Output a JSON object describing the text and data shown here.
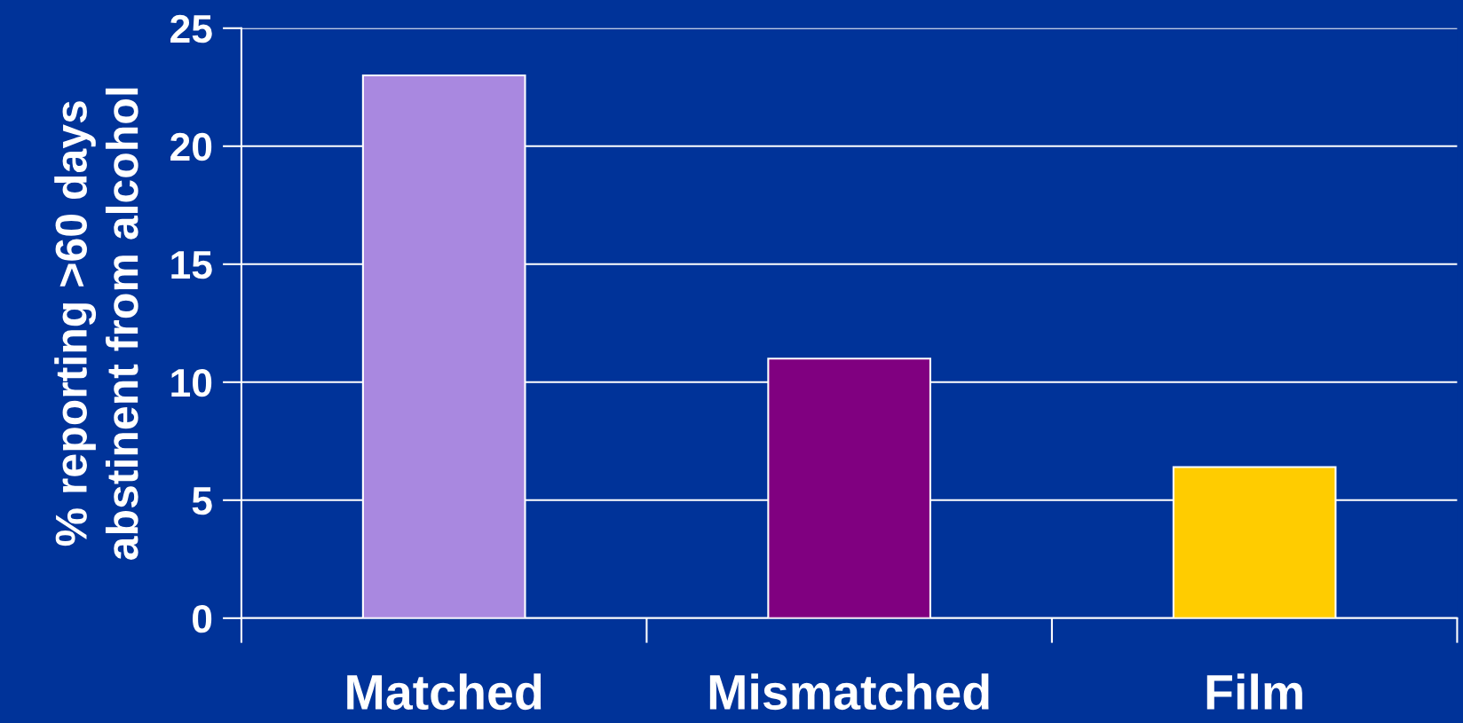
{
  "chart_data": {
    "type": "bar",
    "ylabel": "% reporting >60 days\nabstinent from alcohol",
    "categories": [
      "Matched",
      "Mismatched",
      "Film"
    ],
    "values": [
      23,
      11,
      6.4
    ],
    "colors": [
      "#a988e0",
      "#800080",
      "#ffcc00"
    ],
    "ylim": [
      0,
      25
    ],
    "yticks": [
      0,
      5,
      10,
      15,
      20,
      25
    ],
    "grid": "y",
    "legend": false
  }
}
